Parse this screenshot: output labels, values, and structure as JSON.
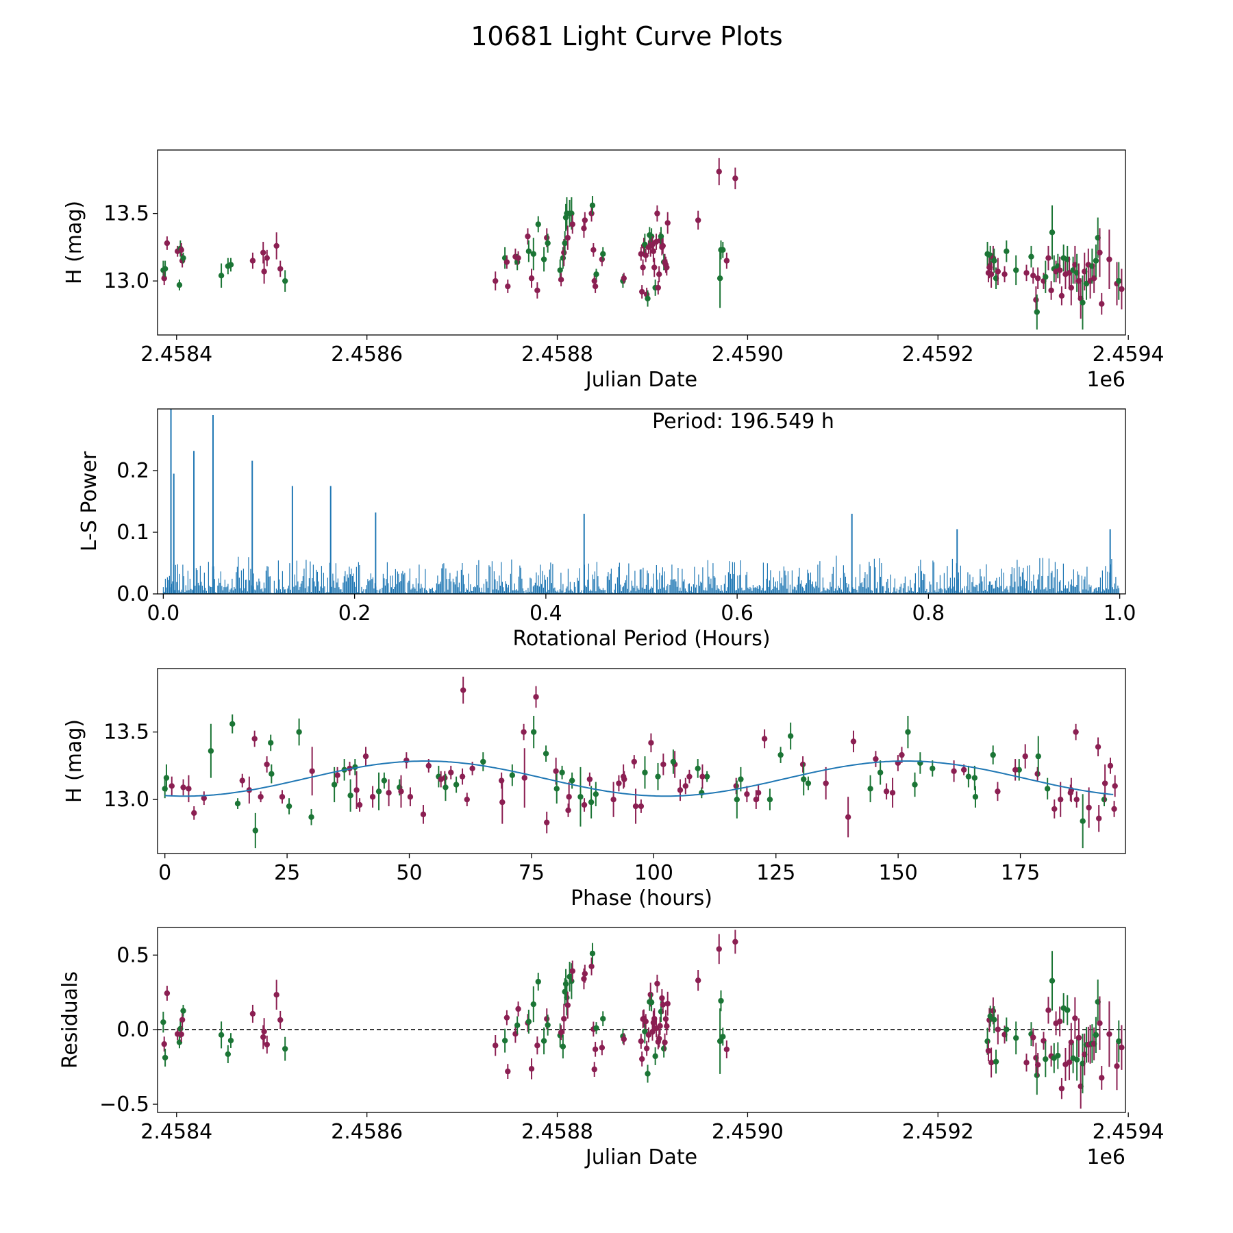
{
  "chart_data": {
    "title": "10681 Light Curve Plots",
    "colors": {
      "series_a": "#8b1f52",
      "series_b": "#1b7535",
      "line": "#1f77b4",
      "axis": "#000000"
    },
    "panels": [
      {
        "id": "lightcurve",
        "type": "scatter",
        "xlabel": "Julian Date",
        "ylabel": "H (mag)",
        "xlim": [
          2458380,
          2459397
        ],
        "ylim": [
          12.6,
          13.97
        ],
        "offset_label": "1e6",
        "xticks": [
          2458400,
          2458600,
          2458800,
          2459000,
          2459200,
          2459400
        ],
        "xtick_labels": [
          "2.4584",
          "2.4586",
          "2.4588",
          "2.4590",
          "2.4592",
          "2.4594"
        ],
        "yticks": [
          13.0,
          13.5
        ],
        "ytick_labels": [
          "13.0",
          "13.5"
        ]
      },
      {
        "id": "periodogram",
        "type": "line",
        "xlabel": "Rotational Period (Hours)",
        "ylabel": "L-S Power",
        "xlim": [
          -0.006,
          1.006
        ],
        "ylim": [
          0,
          0.3
        ],
        "xticks": [
          0.0,
          0.2,
          0.4,
          0.6,
          0.8,
          1.0
        ],
        "xtick_labels": [
          "0.0",
          "0.2",
          "0.4",
          "0.6",
          "0.8",
          "1.0"
        ],
        "yticks": [
          0.0,
          0.1,
          0.2
        ],
        "ytick_labels": [
          "0.0",
          "0.1",
          "0.2"
        ],
        "annotation": "Period: 196.549 h",
        "peaks": [
          [
            0.008,
            0.3
          ],
          [
            0.011,
            0.195
          ],
          [
            0.032,
            0.232
          ],
          [
            0.052,
            0.29
          ],
          [
            0.093,
            0.216
          ],
          [
            0.135,
            0.175
          ],
          [
            0.175,
            0.175
          ],
          [
            0.222,
            0.132
          ],
          [
            0.44,
            0.13
          ],
          [
            0.72,
            0.13
          ],
          [
            0.83,
            0.105
          ],
          [
            0.99,
            0.105
          ]
        ]
      },
      {
        "id": "phased",
        "type": "scatter",
        "xlabel": "Phase (hours)",
        "ylabel": "H (mag)",
        "xlim": [
          -1.5,
          196.5
        ],
        "ylim": [
          12.6,
          13.97
        ],
        "xticks": [
          0,
          25,
          50,
          75,
          100,
          125,
          150,
          175
        ],
        "xtick_labels": [
          "0",
          "25",
          "50",
          "75",
          "100",
          "125",
          "150",
          "175"
        ],
        "yticks": [
          13.0,
          13.5
        ],
        "ytick_labels": [
          "13.0",
          "13.5"
        ],
        "fit": {
          "mean": 13.155,
          "amplitude": 0.13,
          "period_h": 98.27,
          "phase_offset_h": 28.7
        }
      },
      {
        "id": "residuals",
        "type": "scatter",
        "xlabel": "Julian Date",
        "ylabel": "Residuals",
        "xlim": [
          2458380,
          2459397
        ],
        "ylim": [
          -0.555,
          0.685
        ],
        "offset_label": "1e6",
        "xticks": [
          2458400,
          2458600,
          2458800,
          2459000,
          2459200,
          2459400
        ],
        "xtick_labels": [
          "2.4584",
          "2.4586",
          "2.4588",
          "2.4590",
          "2.4592",
          "2.4594"
        ],
        "yticks": [
          -0.5,
          0.0,
          0.5
        ],
        "ytick_labels": [
          "−0.5",
          "0.0",
          "0.5"
        ],
        "zero_line": 0.0
      }
    ],
    "observations": {
      "columns": [
        "julian_date",
        "H_mag",
        "error",
        "filter"
      ],
      "points": [
        [
          2458386,
          13.08,
          0.07,
          "b"
        ],
        [
          2458387,
          13.02,
          0.05,
          "a"
        ],
        [
          2458388,
          13.09,
          0.06,
          "b"
        ],
        [
          2458390,
          13.28,
          0.05,
          "a"
        ],
        [
          2458401,
          13.22,
          0.04,
          "a"
        ],
        [
          2458403,
          12.97,
          0.04,
          "b"
        ],
        [
          2458404,
          13.24,
          0.06,
          "b"
        ],
        [
          2458405,
          13.23,
          0.05,
          "a"
        ],
        [
          2458406,
          13.15,
          0.05,
          "a"
        ],
        [
          2458407,
          13.17,
          0.04,
          "b"
        ],
        [
          2458447,
          13.04,
          0.09,
          "b"
        ],
        [
          2458454,
          13.11,
          0.06,
          "b"
        ],
        [
          2458457,
          13.12,
          0.05,
          "b"
        ],
        [
          2458480,
          13.15,
          0.06,
          "a"
        ],
        [
          2458491,
          13.21,
          0.08,
          "a"
        ],
        [
          2458492,
          13.07,
          0.09,
          "a"
        ],
        [
          2458495,
          13.17,
          0.06,
          "a"
        ],
        [
          2458505,
          13.26,
          0.1,
          "a"
        ],
        [
          2458509,
          13.09,
          0.06,
          "a"
        ],
        [
          2458514,
          13.0,
          0.08,
          "b"
        ],
        [
          2458735,
          13.0,
          0.07,
          "a"
        ],
        [
          2458745,
          13.17,
          0.08,
          "b"
        ],
        [
          2458747,
          13.14,
          0.05,
          "a"
        ],
        [
          2458748,
          12.96,
          0.05,
          "a"
        ],
        [
          2458756,
          13.18,
          0.06,
          "a"
        ],
        [
          2458758,
          13.14,
          0.06,
          "b"
        ],
        [
          2458759,
          13.17,
          0.05,
          "a"
        ],
        [
          2458769,
          13.33,
          0.06,
          "a"
        ],
        [
          2458770,
          13.22,
          0.08,
          "b"
        ],
        [
          2458773,
          13.02,
          0.07,
          "a"
        ],
        [
          2458775,
          13.2,
          0.12,
          "b"
        ],
        [
          2458779,
          12.93,
          0.06,
          "a"
        ],
        [
          2458780,
          13.42,
          0.06,
          "b"
        ],
        [
          2458786,
          13.16,
          0.09,
          "b"
        ],
        [
          2458789,
          13.32,
          0.07,
          "a"
        ],
        [
          2458790,
          13.28,
          0.07,
          "b"
        ],
        [
          2458803,
          13.08,
          0.08,
          "b"
        ],
        [
          2458804,
          13.01,
          0.05,
          "a"
        ],
        [
          2458806,
          13.17,
          0.08,
          "b"
        ],
        [
          2458807,
          13.21,
          0.1,
          "a"
        ],
        [
          2458808,
          13.28,
          0.09,
          "b"
        ],
        [
          2458809,
          13.47,
          0.1,
          "b"
        ],
        [
          2458810,
          13.5,
          0.12,
          "b"
        ],
        [
          2458811,
          13.32,
          0.09,
          "a"
        ],
        [
          2458813,
          13.5,
          0.1,
          "b"
        ],
        [
          2458815,
          13.5,
          0.12,
          "b"
        ],
        [
          2458816,
          13.42,
          0.07,
          "a"
        ],
        [
          2458828,
          13.39,
          0.07,
          "a"
        ],
        [
          2458829,
          13.45,
          0.06,
          "a"
        ],
        [
          2458836,
          13.5,
          0.06,
          "a"
        ],
        [
          2458837,
          13.56,
          0.07,
          "b"
        ],
        [
          2458838,
          13.23,
          0.05,
          "a"
        ],
        [
          2458839,
          13.0,
          0.05,
          "a"
        ],
        [
          2458840,
          12.96,
          0.05,
          "a"
        ],
        [
          2458841,
          13.05,
          0.04,
          "b"
        ],
        [
          2458847,
          13.16,
          0.05,
          "a"
        ],
        [
          2458848,
          13.2,
          0.05,
          "b"
        ],
        [
          2458869,
          13.0,
          0.05,
          "b"
        ],
        [
          2458870,
          13.02,
          0.04,
          "a"
        ],
        [
          2458888,
          13.2,
          0.05,
          "a"
        ],
        [
          2458889,
          12.92,
          0.05,
          "a"
        ],
        [
          2458890,
          13.1,
          0.06,
          "a"
        ],
        [
          2458891,
          13.26,
          0.06,
          "a"
        ],
        [
          2458892,
          13.27,
          0.08,
          "b"
        ],
        [
          2458893,
          13.19,
          0.05,
          "a"
        ],
        [
          2458894,
          12.9,
          0.05,
          "a"
        ],
        [
          2458895,
          12.87,
          0.06,
          "b"
        ],
        [
          2458896,
          13.25,
          0.05,
          "a"
        ],
        [
          2458897,
          13.34,
          0.06,
          "b"
        ],
        [
          2458898,
          13.26,
          0.08,
          "a"
        ],
        [
          2458899,
          13.33,
          0.06,
          "b"
        ],
        [
          2458900,
          13.27,
          0.06,
          "a"
        ],
        [
          2458901,
          13.22,
          0.08,
          "a"
        ],
        [
          2458902,
          13.1,
          0.07,
          "a"
        ],
        [
          2458903,
          12.95,
          0.06,
          "b"
        ],
        [
          2458904,
          13.29,
          0.06,
          "a"
        ],
        [
          2458905,
          13.5,
          0.06,
          "a"
        ],
        [
          2458906,
          12.95,
          0.05,
          "a"
        ],
        [
          2458907,
          13.05,
          0.06,
          "a"
        ],
        [
          2458908,
          13.3,
          0.06,
          "a"
        ],
        [
          2458909,
          13.33,
          0.07,
          "b"
        ],
        [
          2458910,
          13.25,
          0.06,
          "a"
        ],
        [
          2458911,
          13.26,
          0.06,
          "a"
        ],
        [
          2458912,
          13.14,
          0.06,
          "b"
        ],
        [
          2458913,
          13.14,
          0.06,
          "a"
        ],
        [
          2458914,
          13.12,
          0.06,
          "a"
        ],
        [
          2458915,
          13.1,
          0.06,
          "a"
        ],
        [
          2458916,
          13.43,
          0.08,
          "a"
        ],
        [
          2458948,
          13.45,
          0.07,
          "a"
        ],
        [
          2458970,
          13.81,
          0.1,
          "a"
        ],
        [
          2458971,
          13.02,
          0.22,
          "b"
        ],
        [
          2458972,
          13.23,
          0.07,
          "b"
        ],
        [
          2458974,
          13.23,
          0.06,
          "b"
        ],
        [
          2458978,
          13.15,
          0.06,
          "a"
        ],
        [
          2458987,
          13.76,
          0.08,
          "a"
        ],
        [
          2459252,
          13.2,
          0.09,
          "b"
        ],
        [
          2459253,
          13.06,
          0.07,
          "a"
        ],
        [
          2459254,
          13.1,
          0.08,
          "a"
        ],
        [
          2459255,
          13.19,
          0.07,
          "b"
        ],
        [
          2459256,
          13.05,
          0.1,
          "a"
        ],
        [
          2459258,
          13.17,
          0.09,
          "a"
        ],
        [
          2459259,
          13.15,
          0.09,
          "b"
        ],
        [
          2459261,
          13.02,
          0.08,
          "b"
        ],
        [
          2459263,
          13.07,
          0.1,
          "a"
        ],
        [
          2459270,
          13.05,
          0.06,
          "a"
        ],
        [
          2459272,
          13.22,
          0.08,
          "b"
        ],
        [
          2459282,
          13.08,
          0.11,
          "b"
        ],
        [
          2459293,
          13.06,
          0.06,
          "a"
        ],
        [
          2459298,
          13.18,
          0.08,
          "b"
        ],
        [
          2459300,
          13.04,
          0.06,
          "a"
        ],
        [
          2459303,
          12.86,
          0.1,
          "a"
        ],
        [
          2459304,
          12.77,
          0.13,
          "b"
        ],
        [
          2459305,
          13.02,
          0.08,
          "a"
        ],
        [
          2459311,
          13.0,
          0.06,
          "a"
        ],
        [
          2459313,
          13.03,
          0.12,
          "b"
        ],
        [
          2459316,
          13.17,
          0.09,
          "a"
        ],
        [
          2459319,
          12.93,
          0.07,
          "a"
        ],
        [
          2459320,
          13.36,
          0.2,
          "b"
        ],
        [
          2459322,
          13.09,
          0.1,
          "b"
        ],
        [
          2459324,
          13.07,
          0.08,
          "a"
        ],
        [
          2459326,
          13.11,
          0.09,
          "b"
        ],
        [
          2459328,
          13.08,
          0.1,
          "a"
        ],
        [
          2459330,
          12.89,
          0.07,
          "a"
        ],
        [
          2459332,
          13.17,
          0.1,
          "b"
        ],
        [
          2459334,
          13.05,
          0.11,
          "a"
        ],
        [
          2459336,
          13.16,
          0.1,
          "b"
        ],
        [
          2459338,
          13.06,
          0.12,
          "a"
        ],
        [
          2459340,
          12.95,
          0.13,
          "a"
        ],
        [
          2459342,
          13.08,
          0.1,
          "b"
        ],
        [
          2459344,
          13.12,
          0.14,
          "a"
        ],
        [
          2459346,
          13.06,
          0.14,
          "b"
        ],
        [
          2459348,
          13.0,
          0.13,
          "a"
        ],
        [
          2459350,
          12.87,
          0.15,
          "a"
        ],
        [
          2459352,
          12.84,
          0.2,
          "b"
        ],
        [
          2459354,
          13.07,
          0.14,
          "a"
        ],
        [
          2459356,
          12.98,
          0.12,
          "b"
        ],
        [
          2459358,
          13.12,
          0.12,
          "a"
        ],
        [
          2459360,
          13.0,
          0.13,
          "a"
        ],
        [
          2459362,
          13.11,
          0.13,
          "b"
        ],
        [
          2459364,
          13.02,
          0.11,
          "a"
        ],
        [
          2459366,
          13.15,
          0.12,
          "b"
        ],
        [
          2459368,
          13.32,
          0.15,
          "b"
        ],
        [
          2459370,
          13.21,
          0.18,
          "a"
        ],
        [
          2459372,
          12.83,
          0.08,
          "a"
        ],
        [
          2459380,
          13.16,
          0.22,
          "a"
        ],
        [
          2459388,
          12.98,
          0.16,
          "a"
        ],
        [
          2459390,
          13.0,
          0.14,
          "b"
        ],
        [
          2459393,
          12.94,
          0.15,
          "a"
        ]
      ]
    }
  }
}
